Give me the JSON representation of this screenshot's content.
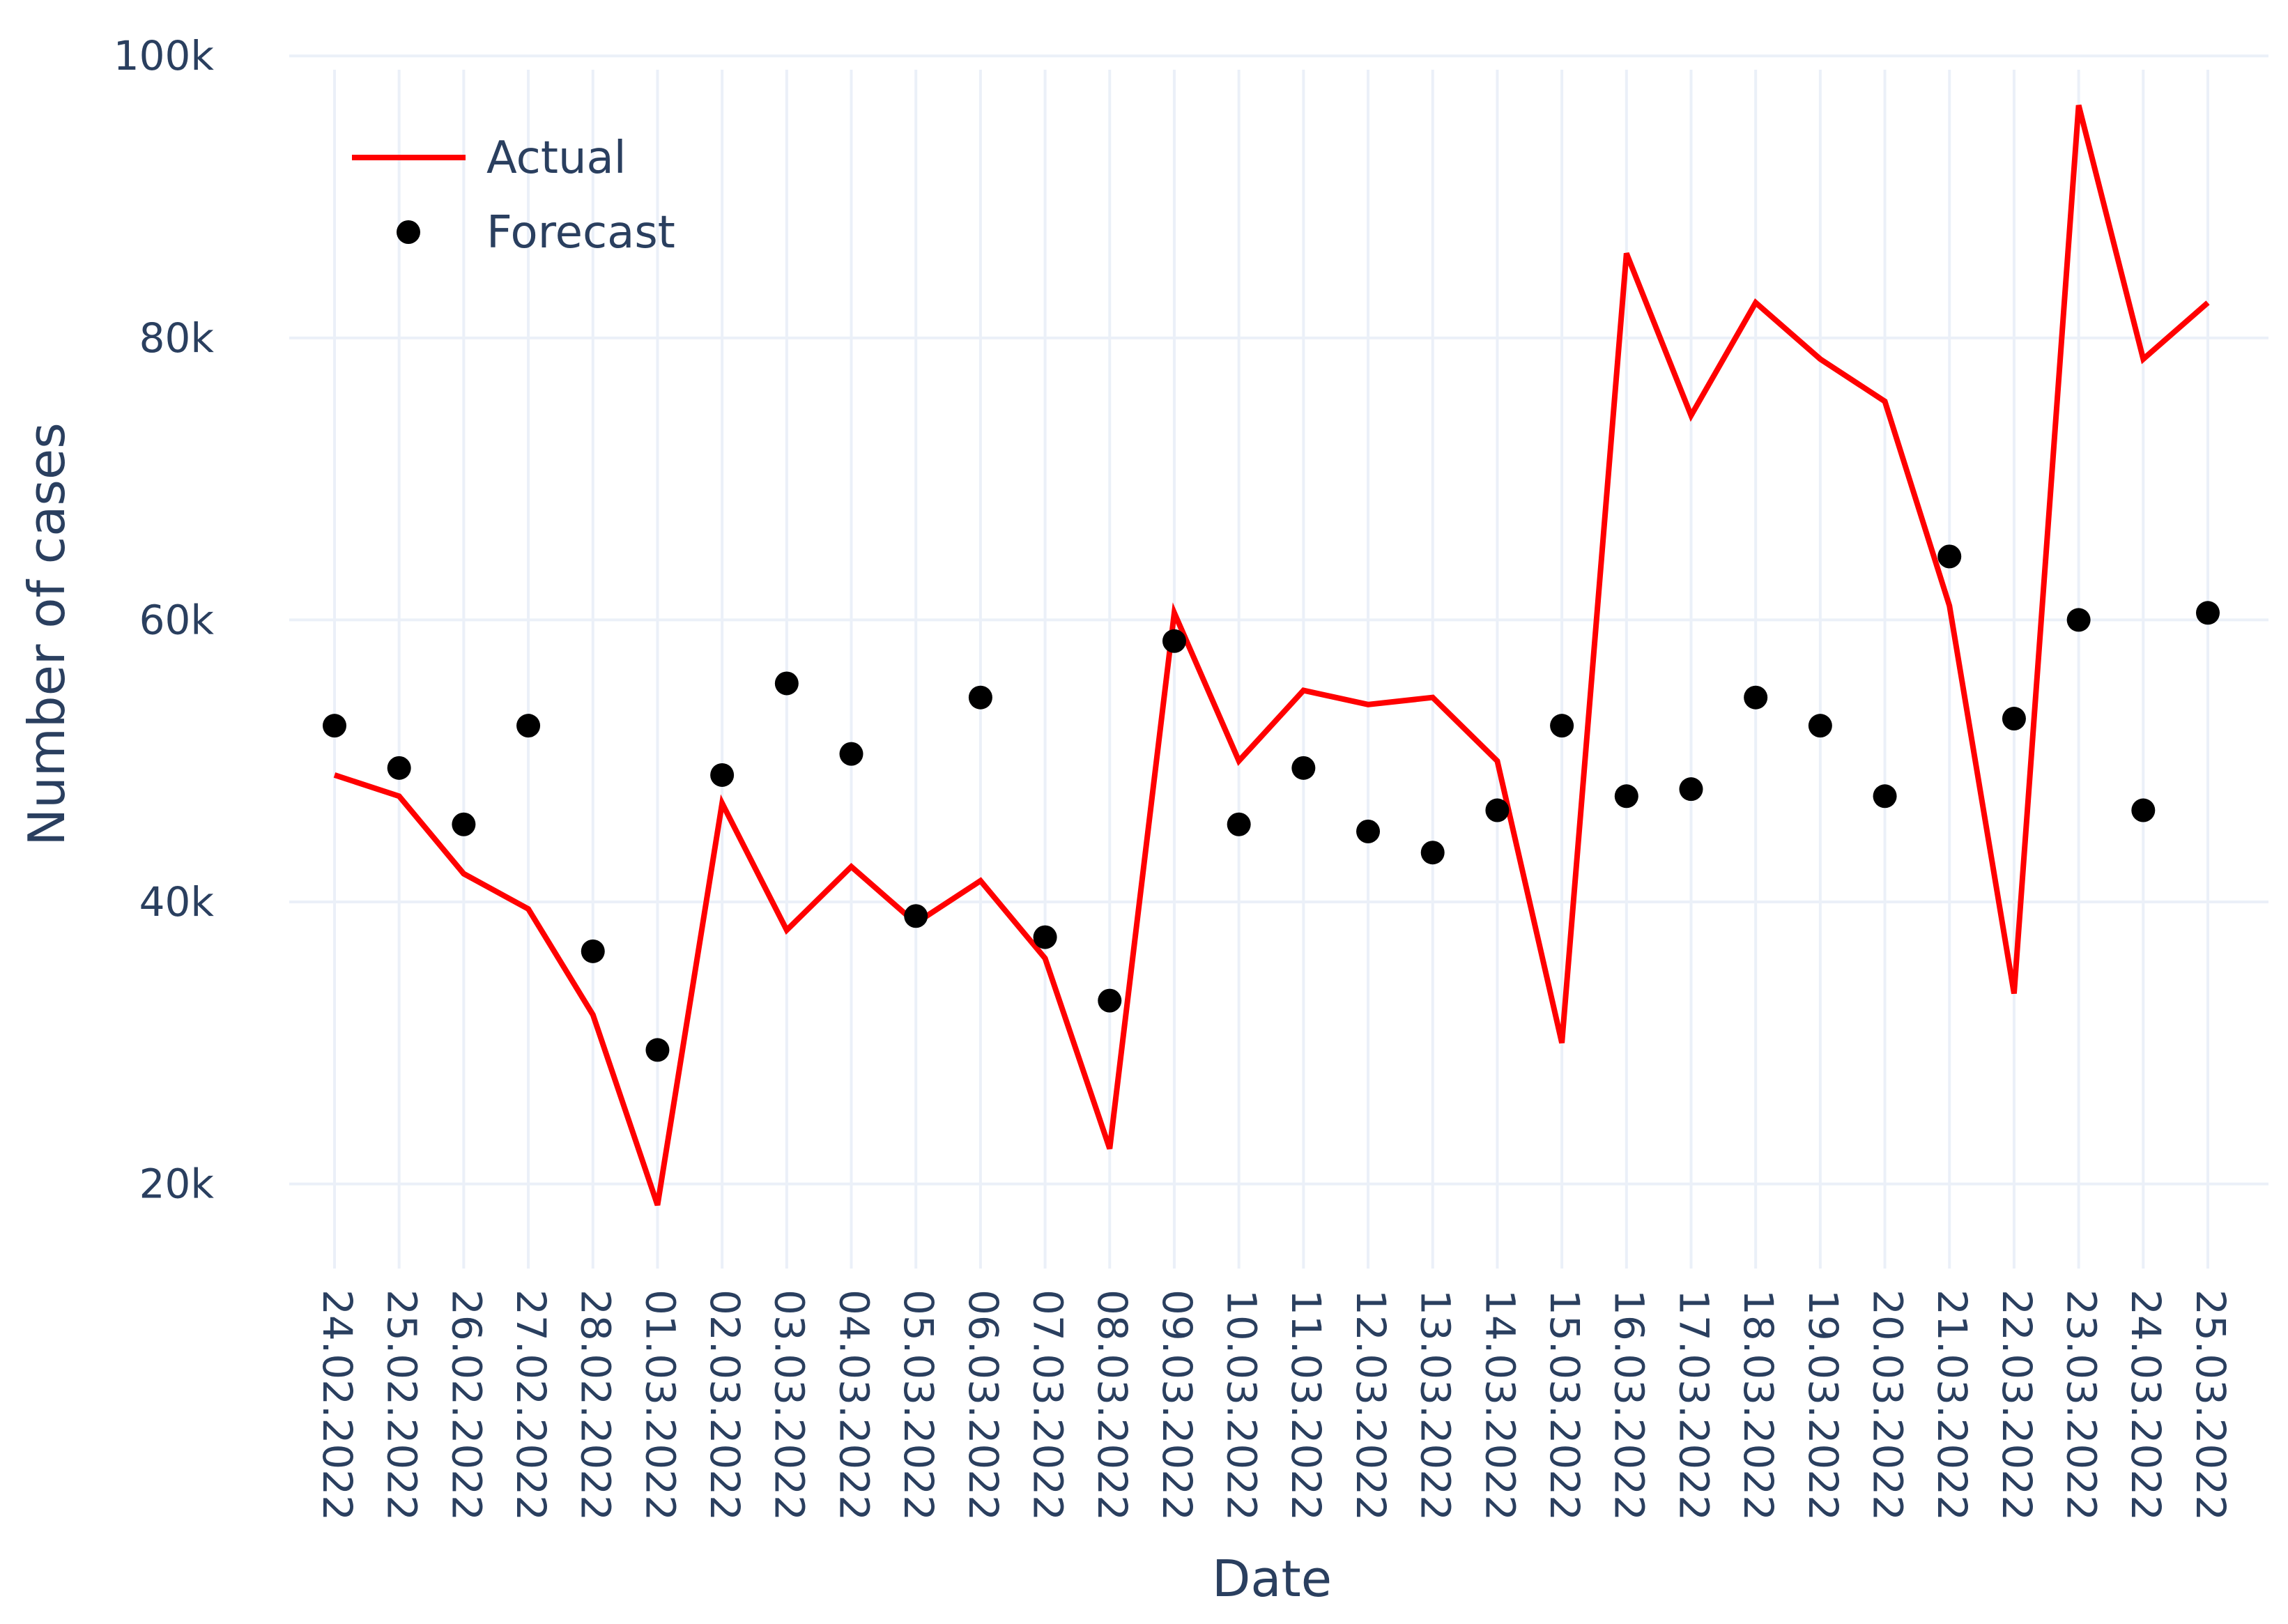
{
  "chart_data": {
    "type": "line",
    "xlabel": "Date",
    "ylabel": "Number of cases",
    "ylim": [
      14000,
      101000
    ],
    "yticks": [
      20000,
      40000,
      60000,
      80000,
      100000
    ],
    "ytick_labels": [
      "20k",
      "40k",
      "60k",
      "80k",
      "100k"
    ],
    "categories": [
      "24.02.2022",
      "25.02.2022",
      "26.02.2022",
      "27.02.2022",
      "28.02.2022",
      "01.03.2022",
      "02.03.2022",
      "03.03.2022",
      "04.03.2022",
      "05.03.2022",
      "06.03.2022",
      "07.03.2022",
      "08.03.2022",
      "09.03.2022",
      "10.03.2022",
      "11.03.2022",
      "12.03.2022",
      "13.03.2022",
      "14.03.2022",
      "15.03.2022",
      "16.03.2022",
      "17.03.2022",
      "18.03.2022",
      "19.03.2022",
      "20.03.2022",
      "21.03.2022",
      "22.03.2022",
      "23.03.2022",
      "24.03.2022",
      "25.03.2022"
    ],
    "series": [
      {
        "name": "Actual",
        "mode": "line",
        "color": "#ff0000",
        "values": [
          49000,
          47500,
          42000,
          39500,
          32000,
          18500,
          47000,
          38000,
          42500,
          38500,
          41500,
          36000,
          22500,
          60500,
          50000,
          55000,
          54000,
          54500,
          50000,
          30000,
          86000,
          74500,
          82500,
          78500,
          75500,
          61000,
          33500,
          96500,
          78500,
          82500
        ]
      },
      {
        "name": "Forecast",
        "mode": "markers",
        "color": "#000000",
        "values": [
          52500,
          49500,
          45500,
          52500,
          36500,
          29500,
          49000,
          55500,
          50500,
          39000,
          54500,
          37500,
          33000,
          58500,
          45500,
          49500,
          45000,
          43500,
          46500,
          52500,
          47500,
          48000,
          54500,
          52500,
          47500,
          64500,
          53000,
          60000,
          46500,
          60500
        ]
      }
    ],
    "legend_position": "top-left",
    "grid": true
  }
}
